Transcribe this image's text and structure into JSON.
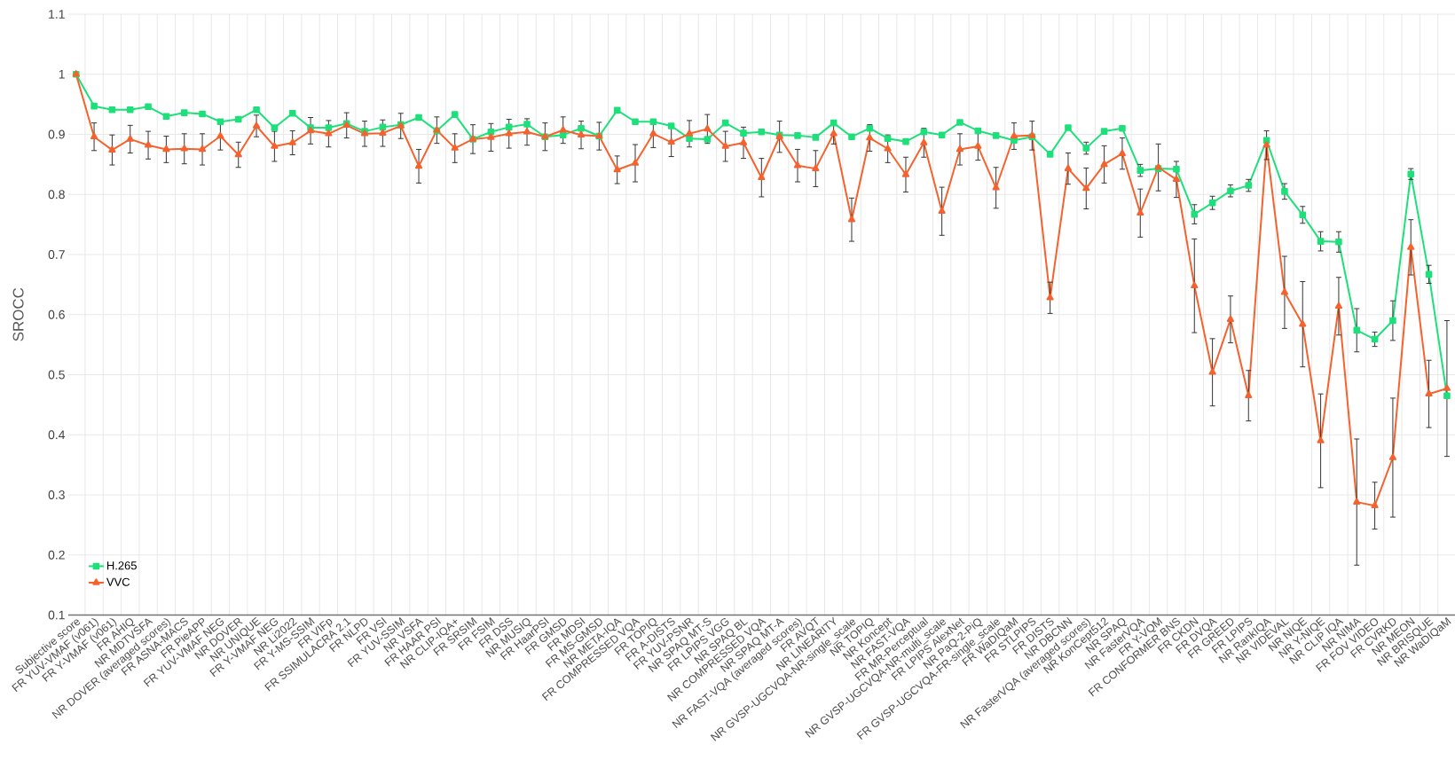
{
  "chart_data": {
    "type": "line",
    "ylabel": "SROCC",
    "categories": [
      "Subjective score",
      "FR YUV-VMAF (v061)",
      "FR Y-VMAF (v061)",
      "FR AHIQ",
      "NR MDTVSFA",
      "NR DOVER (averaged scores)",
      "FR ASNA-MACS",
      "FR PieAPP",
      "FR YUV-VMAF NEG",
      "NR DOVER",
      "NR UNIQUE",
      "FR Y-VMAF NEG",
      "NR Li2022",
      "FR Y-MS-SSIM",
      "FR VIFp",
      "FR SSIMULACRA 2.1",
      "FR NLPD",
      "FR VSI",
      "FR YUV-SSIM",
      "NR VSFA",
      "FR HAAR PSI",
      "NR CLIP-IQA+",
      "FR SRSIM",
      "FR FSIM",
      "FR DSS",
      "NR MUSIQ",
      "FR HaarPSI",
      "FR GMSD",
      "FR MDSI",
      "FR MS-GMSD",
      "NR META-IQA",
      "FR COMPRESSED VQA",
      "FR TOPIQ",
      "FR A-DISTS",
      "FR YUV-PSNR",
      "NR SPAQ MT-S",
      "FR LPIPS VGG",
      "NR SPAQ BL",
      "NR COMPRESSED VQA",
      "NR SPAQ MT-A",
      "NR FAST-VQA (averaged scores)",
      "FR AVQT",
      "NR LINEARITY",
      "NR GVSP-UGCVQA-NR-single_scale",
      "NR TOPIQ",
      "NR Koncept",
      "NR FAST-VQA",
      "FR MR-Perceptual",
      "NR GVSP-UGCVQA-NR-multi_scale",
      "FR LPIPS AlexNet",
      "NR PaQ-2-PiQ",
      "FR GVSP-UGCVQA-FR-single_scale",
      "FR WaDIQaM",
      "FR STLPIPS",
      "FR DISTS",
      "NR DBCNN",
      "NR FasterVQA (averaged scores)",
      "NR KonCept512",
      "NR SPAQ",
      "NR FasterVQA",
      "FR Y-VQM",
      "FR CONFORMER BNS",
      "FR CKDN",
      "FR DVQA",
      "FR GREED",
      "FR LPIPS",
      "NR RankIQA",
      "NR VIDEVAL",
      "NR NIQE",
      "NR Y-NIQE",
      "NR CLIP IQA",
      "NR NIMA",
      "FR FOV VIDEO",
      "FR CVRKD",
      "NR MEON",
      "NR BRISQUE",
      "NR WaDIQaM"
    ],
    "series": [
      {
        "name": "H.265",
        "color": "#1ee07a",
        "marker": "square",
        "values": [
          1.0,
          0.947,
          0.941,
          0.941,
          0.946,
          0.93,
          0.936,
          0.934,
          0.921,
          0.925,
          0.941,
          0.911,
          0.935,
          0.911,
          0.911,
          0.918,
          0.905,
          0.912,
          0.916,
          0.928,
          0.906,
          0.933,
          0.892,
          0.904,
          0.912,
          0.917,
          0.896,
          0.899,
          0.91,
          0.897,
          0.94,
          0.921,
          0.921,
          0.914,
          0.893,
          0.892,
          0.919,
          0.902,
          0.904,
          0.899,
          0.898,
          0.895,
          0.919,
          0.896,
          0.91,
          0.893,
          0.888,
          0.904,
          0.899,
          0.92,
          0.906,
          0.898,
          0.89,
          0.896,
          0.867,
          0.911,
          0.877,
          0.905,
          0.91,
          0.84,
          0.843,
          0.842,
          0.767,
          0.786,
          0.806,
          0.815,
          0.89,
          0.805,
          0.766,
          0.722,
          0.721,
          0.574,
          0.559,
          0.59,
          0.834,
          0.667,
          0.465
        ],
        "errors": [
          null,
          null,
          null,
          null,
          null,
          null,
          null,
          null,
          null,
          null,
          null,
          null,
          null,
          null,
          null,
          null,
          null,
          null,
          null,
          null,
          null,
          null,
          null,
          null,
          null,
          null,
          null,
          null,
          null,
          null,
          null,
          null,
          null,
          null,
          null,
          null,
          null,
          null,
          null,
          null,
          null,
          null,
          null,
          null,
          null,
          null,
          null,
          null,
          null,
          null,
          null,
          null,
          null,
          null,
          null,
          null,
          0.01,
          null,
          null,
          0.01,
          null,
          null,
          0.016,
          0.011,
          0.01,
          0.01,
          null,
          0.013,
          0.014,
          0.016,
          0.017,
          0.036,
          0.012,
          0.033,
          0.009,
          0.015,
          null
        ]
      },
      {
        "name": "VVC",
        "color": "#f5622d",
        "marker": "triangle",
        "values": [
          1.0,
          0.896,
          0.874,
          0.892,
          0.882,
          0.875,
          0.876,
          0.875,
          0.897,
          0.866,
          0.914,
          0.88,
          0.886,
          0.906,
          0.901,
          0.915,
          0.901,
          0.902,
          0.914,
          0.847,
          0.907,
          0.877,
          0.892,
          0.895,
          0.901,
          0.904,
          0.896,
          0.907,
          0.899,
          0.897,
          0.841,
          0.852,
          0.901,
          0.887,
          0.901,
          0.909,
          0.88,
          0.886,
          0.828,
          0.896,
          0.848,
          0.843,
          0.901,
          0.758,
          0.894,
          0.876,
          0.833,
          0.886,
          0.772,
          0.875,
          0.88,
          0.811,
          0.897,
          0.898,
          0.628,
          0.843,
          0.81,
          0.85,
          0.868,
          0.769,
          0.845,
          0.825,
          0.648,
          0.504,
          0.592,
          0.465,
          0.882,
          0.637,
          0.584,
          0.39,
          0.614,
          0.288,
          0.282,
          0.362,
          0.712,
          0.468,
          0.477
        ],
        "errors": [
          null,
          0.023,
          0.025,
          0.023,
          0.023,
          0.022,
          0.025,
          0.026,
          0.023,
          0.021,
          0.018,
          0.025,
          0.02,
          0.022,
          0.022,
          0.021,
          0.021,
          0.022,
          0.021,
          0.028,
          0.022,
          0.024,
          0.024,
          0.023,
          0.024,
          0.022,
          0.023,
          0.022,
          0.023,
          0.023,
          0.023,
          0.031,
          0.023,
          0.024,
          0.022,
          0.024,
          0.025,
          0.026,
          0.032,
          0.026,
          0.027,
          0.03,
          0.017,
          0.036,
          0.022,
          0.023,
          0.029,
          0.024,
          0.04,
          0.026,
          0.023,
          0.034,
          0.022,
          0.024,
          0.026,
          0.026,
          0.034,
          0.031,
          0.026,
          0.04,
          0.039,
          0.03,
          0.078,
          0.056,
          0.039,
          0.042,
          0.024,
          0.06,
          0.071,
          0.078,
          0.048,
          0.105,
          0.039,
          0.099,
          0.046,
          0.056,
          0.113
        ]
      }
    ],
    "ylim": [
      0.1,
      1.1
    ],
    "yticks": [
      0.1,
      0.2,
      0.3,
      0.4,
      0.5,
      0.6,
      0.7,
      0.8,
      0.9,
      1,
      1.1
    ],
    "grid": true,
    "legend": "bottom left",
    "line_style": "solid"
  }
}
